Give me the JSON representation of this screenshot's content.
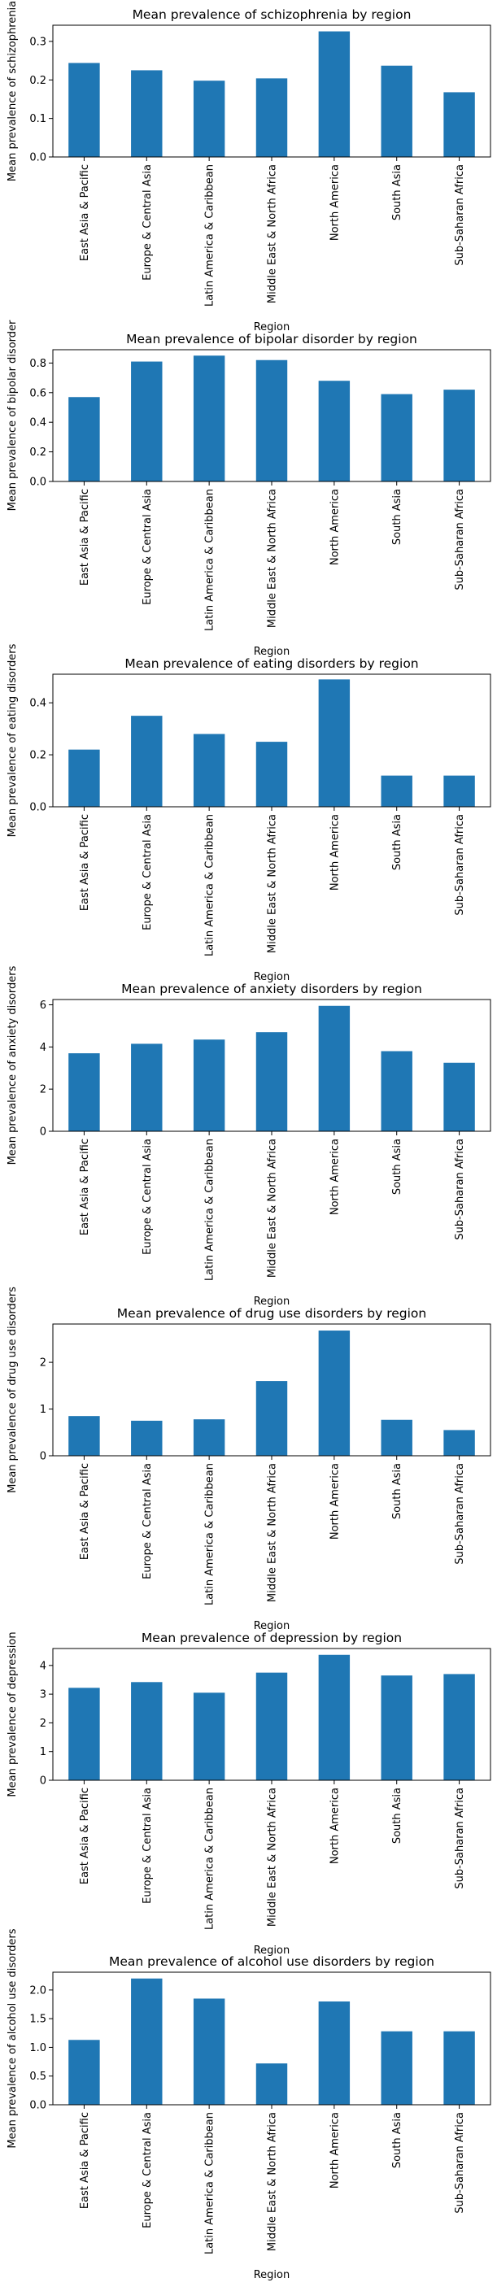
{
  "bar_color": "#1f77b4",
  "chart_data": [
    {
      "type": "bar",
      "title": "Mean prevalence of schizophrenia by region",
      "xlabel": "Region",
      "ylabel": "Mean prevalence of schizophrenia",
      "categories": [
        "East Asia & Pacific",
        "Europe & Central Asia",
        "Latin America & Caribbean",
        "Middle East & North Africa",
        "North America",
        "South Asia",
        "Sub-Saharan Africa"
      ],
      "values": [
        0.244,
        0.225,
        0.198,
        0.204,
        0.326,
        0.237,
        0.168
      ],
      "ylim": [
        0,
        0.342
      ],
      "yticks": [
        "0.0",
        "0.1",
        "0.2",
        "0.3"
      ],
      "ytick_values": [
        0,
        0.1,
        0.2,
        0.3
      ],
      "grid": false,
      "legend": "none"
    },
    {
      "type": "bar",
      "title": "Mean prevalence of bipolar disorder by region",
      "xlabel": "Region",
      "ylabel": "Mean prevalence of bipolar disorder",
      "categories": [
        "East Asia & Pacific",
        "Europe & Central Asia",
        "Latin America & Caribbean",
        "Middle East & North Africa",
        "North America",
        "South Asia",
        "Sub-Saharan Africa"
      ],
      "values": [
        0.57,
        0.81,
        0.85,
        0.82,
        0.68,
        0.59,
        0.62
      ],
      "ylim": [
        0,
        0.89
      ],
      "yticks": [
        "0.0",
        "0.2",
        "0.4",
        "0.6",
        "0.8"
      ],
      "ytick_values": [
        0,
        0.2,
        0.4,
        0.6,
        0.8
      ],
      "grid": false,
      "legend": "none"
    },
    {
      "type": "bar",
      "title": "Mean prevalence of eating disorders by region",
      "xlabel": "Region",
      "ylabel": "Mean prevalence of eating disorders",
      "categories": [
        "East Asia & Pacific",
        "Europe & Central Asia",
        "Latin America & Caribbean",
        "Middle East & North Africa",
        "North America",
        "South Asia",
        "Sub-Saharan Africa"
      ],
      "values": [
        0.22,
        0.35,
        0.28,
        0.25,
        0.49,
        0.12,
        0.12
      ],
      "ylim": [
        0,
        0.51
      ],
      "yticks": [
        "0.0",
        "0.2",
        "0.4"
      ],
      "ytick_values": [
        0,
        0.2,
        0.4
      ],
      "grid": false,
      "legend": "none"
    },
    {
      "type": "bar",
      "title": "Mean prevalence of anxiety disorders by region",
      "xlabel": "Region",
      "ylabel": "Mean prevalence of anxiety disorders",
      "categories": [
        "East Asia & Pacific",
        "Europe & Central Asia",
        "Latin America & Caribbean",
        "Middle East & North Africa",
        "North America",
        "South Asia",
        "Sub-Saharan Africa"
      ],
      "values": [
        3.7,
        4.15,
        4.35,
        4.7,
        5.95,
        3.8,
        3.25
      ],
      "ylim": [
        0,
        6.25
      ],
      "yticks": [
        "0",
        "2",
        "4",
        "6"
      ],
      "ytick_values": [
        0,
        2,
        4,
        6
      ],
      "grid": false,
      "legend": "none"
    },
    {
      "type": "bar",
      "title": "Mean prevalence of drug use disorders by region",
      "xlabel": "Region",
      "ylabel": "Mean prevalence of drug use disorders",
      "categories": [
        "East Asia & Pacific",
        "Europe & Central Asia",
        "Latin America & Caribbean",
        "Middle East & North Africa",
        "North America",
        "South Asia",
        "Sub-Saharan Africa"
      ],
      "values": [
        0.85,
        0.75,
        0.78,
        1.6,
        2.68,
        0.77,
        0.55
      ],
      "ylim": [
        0,
        2.82
      ],
      "yticks": [
        "0",
        "1",
        "2"
      ],
      "ytick_values": [
        0,
        1,
        2
      ],
      "grid": false,
      "legend": "none"
    },
    {
      "type": "bar",
      "title": "Mean prevalence of depression by region",
      "xlabel": "Region",
      "ylabel": "Mean prevalence of depression",
      "categories": [
        "East Asia & Pacific",
        "Europe & Central Asia",
        "Latin America & Caribbean",
        "Middle East & North Africa",
        "North America",
        "South Asia",
        "Sub-Saharan Africa"
      ],
      "values": [
        3.22,
        3.42,
        3.05,
        3.75,
        4.37,
        3.65,
        3.7
      ],
      "ylim": [
        0,
        4.59
      ],
      "yticks": [
        "0",
        "1",
        "2",
        "3",
        "4"
      ],
      "ytick_values": [
        0,
        1,
        2,
        3,
        4
      ],
      "grid": false,
      "legend": "none"
    },
    {
      "type": "bar",
      "title": "Mean prevalence of alcohol use disorders by region",
      "xlabel": "Region",
      "ylabel": "Mean prevalence of alcohol use disorders",
      "categories": [
        "East Asia & Pacific",
        "Europe & Central Asia",
        "Latin America & Caribbean",
        "Middle East & North Africa",
        "North America",
        "South Asia",
        "Sub-Saharan Africa"
      ],
      "values": [
        1.13,
        2.2,
        1.85,
        0.72,
        1.8,
        1.28,
        1.28
      ],
      "ylim": [
        0,
        2.31
      ],
      "yticks": [
        "0.0",
        "0.5",
        "1.0",
        "1.5",
        "2.0"
      ],
      "ytick_values": [
        0,
        0.5,
        1,
        1.5,
        2
      ],
      "grid": false,
      "legend": "none"
    }
  ]
}
